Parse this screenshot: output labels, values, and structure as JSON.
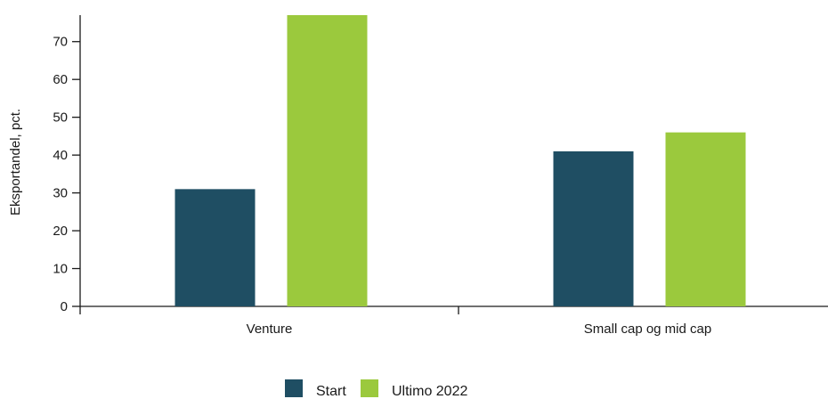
{
  "chart_data": {
    "type": "bar",
    "title": "",
    "xlabel": "",
    "ylabel": "Eksportandel, pct.",
    "categories": [
      "Venture",
      "Small cap og mid cap"
    ],
    "series": [
      {
        "name": "Start",
        "values": [
          31,
          41
        ],
        "color": "#1f4e63"
      },
      {
        "name": "Ultimo 2022",
        "values": [
          77,
          46
        ],
        "color": "#9bc93d"
      }
    ],
    "ylim": [
      0,
      77
    ],
    "yticks": [
      0,
      10,
      20,
      30,
      40,
      50,
      60,
      70
    ],
    "grid": false,
    "legend": "bottom-center"
  }
}
